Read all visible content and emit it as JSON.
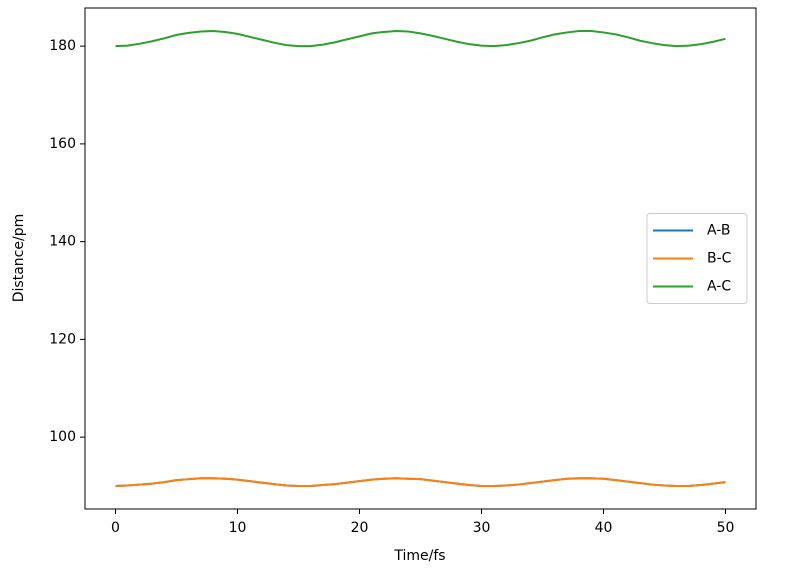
{
  "chart_data": {
    "type": "line",
    "xlabel": "Time/fs",
    "ylabel": "Distance/pm",
    "x": [
      0,
      1,
      2,
      3,
      4,
      5,
      6,
      7,
      8,
      9,
      10,
      11,
      12,
      13,
      14,
      15,
      16,
      17,
      18,
      19,
      20,
      21,
      22,
      23,
      24,
      25,
      26,
      27,
      28,
      29,
      30,
      31,
      32,
      33,
      34,
      35,
      36,
      37,
      38,
      39,
      40,
      41,
      42,
      43,
      44,
      45,
      46,
      47,
      48,
      49,
      50
    ],
    "series": [
      {
        "name": "A-B",
        "color": "#1f77b4",
        "values": [
          90.0,
          90.1,
          90.3,
          90.5,
          90.8,
          91.2,
          91.4,
          91.6,
          91.6,
          91.5,
          91.3,
          91.0,
          90.7,
          90.4,
          90.1,
          90.0,
          90.0,
          90.2,
          90.4,
          90.7,
          91.0,
          91.3,
          91.5,
          91.6,
          91.5,
          91.4,
          91.1,
          90.8,
          90.5,
          90.2,
          90.0,
          90.0,
          90.1,
          90.3,
          90.6,
          90.9,
          91.2,
          91.5,
          91.6,
          91.6,
          91.5,
          91.2,
          90.9,
          90.6,
          90.3,
          90.1,
          90.0,
          90.0,
          90.2,
          90.5,
          90.8
        ]
      },
      {
        "name": "B-C",
        "color": "#ff7f0e",
        "values": [
          90.0,
          90.1,
          90.3,
          90.5,
          90.8,
          91.2,
          91.4,
          91.6,
          91.6,
          91.5,
          91.3,
          91.0,
          90.7,
          90.4,
          90.1,
          90.0,
          90.0,
          90.2,
          90.4,
          90.7,
          91.0,
          91.3,
          91.5,
          91.6,
          91.5,
          91.4,
          91.1,
          90.8,
          90.5,
          90.2,
          90.0,
          90.0,
          90.1,
          90.3,
          90.6,
          90.9,
          91.2,
          91.5,
          91.6,
          91.6,
          91.5,
          91.2,
          90.9,
          90.6,
          90.3,
          90.1,
          90.0,
          90.0,
          90.2,
          90.5,
          90.8
        ]
      },
      {
        "name": "A-C",
        "color": "#2ca02c",
        "values": [
          180.0,
          180.1,
          180.5,
          181.0,
          181.6,
          182.3,
          182.7,
          183.0,
          183.1,
          182.9,
          182.5,
          181.9,
          181.3,
          180.7,
          180.2,
          180.0,
          180.0,
          180.3,
          180.8,
          181.4,
          182.0,
          182.6,
          182.9,
          183.1,
          183.0,
          182.6,
          182.1,
          181.5,
          180.9,
          180.4,
          180.1,
          180.0,
          180.2,
          180.6,
          181.1,
          181.8,
          182.4,
          182.8,
          183.1,
          183.1,
          182.8,
          182.4,
          181.8,
          181.1,
          180.6,
          180.2,
          180.0,
          180.1,
          180.4,
          180.9,
          181.5
        ]
      }
    ],
    "xlim": [
      -2.5,
      52.5
    ],
    "xticks": [
      0,
      10,
      20,
      30,
      40,
      50
    ],
    "ylim": [
      85.3,
      187.8
    ],
    "yticks": [
      100,
      120,
      140,
      160,
      180
    ],
    "grid": false,
    "legend": "center right"
  }
}
